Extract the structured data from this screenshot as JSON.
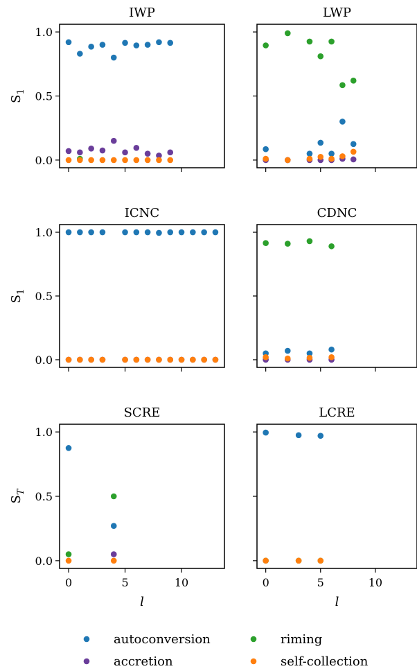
{
  "colors": {
    "autoconversion": "#1f77b4",
    "accretion": "#6a3d9a",
    "riming": "#2ca02c",
    "self-collection": "#ff7f0e"
  },
  "legend": {
    "items": [
      {
        "key": "autoconversion",
        "label": "autoconversion"
      },
      {
        "key": "riming",
        "label": "riming"
      },
      {
        "key": "accretion",
        "label": "accretion"
      },
      {
        "key": "self-collection",
        "label": "self-collection"
      }
    ]
  },
  "chart_data": [
    {
      "type": "scatter",
      "title": "IWP",
      "ylabel": "S1",
      "xlabel": "",
      "xlim": [
        -0.8,
        13.8
      ],
      "ylim": [
        -0.06,
        1.06
      ],
      "yticks": [
        "0.0",
        "0.5",
        "1.0"
      ],
      "xticks": [],
      "series": [
        {
          "name": "autoconversion",
          "x": [
            0,
            1,
            2,
            3,
            4,
            5,
            6,
            7,
            8,
            9
          ],
          "y": [
            0.92,
            0.83,
            0.885,
            0.9,
            0.8,
            0.915,
            0.895,
            0.9,
            0.92,
            0.915
          ]
        },
        {
          "name": "riming",
          "x": [
            1
          ],
          "y": [
            0.01
          ]
        },
        {
          "name": "accretion",
          "x": [
            0,
            1,
            2,
            3,
            4,
            5,
            6,
            7,
            8,
            9
          ],
          "y": [
            0.07,
            0.06,
            0.09,
            0.075,
            0.15,
            0.06,
            0.095,
            0.05,
            0.035,
            0.06
          ]
        },
        {
          "name": "self-collection",
          "x": [
            0,
            1,
            2,
            3,
            4,
            5,
            6,
            7,
            8,
            9
          ],
          "y": [
            0,
            0,
            0,
            0,
            0,
            0,
            0,
            0,
            0,
            0
          ]
        }
      ]
    },
    {
      "type": "scatter",
      "title": "LWP",
      "ylabel": "",
      "xlabel": "",
      "xlim": [
        -0.8,
        13.8
      ],
      "ylim": [
        -0.06,
        1.06
      ],
      "yticks": [],
      "xticks": [],
      "series": [
        {
          "name": "autoconversion",
          "x": [
            0,
            2,
            4,
            5,
            6,
            7,
            8
          ],
          "y": [
            0.085,
            0.0,
            0.05,
            0.135,
            0.05,
            0.3,
            0.125
          ]
        },
        {
          "name": "riming",
          "x": [
            0,
            2,
            4,
            5,
            6,
            7,
            8
          ],
          "y": [
            0.895,
            0.99,
            0.925,
            0.81,
            0.925,
            0.585,
            0.62
          ]
        },
        {
          "name": "accretion",
          "x": [
            0,
            2,
            4,
            5,
            6,
            7,
            8
          ],
          "y": [
            0.0,
            0.0,
            0.0,
            0.0,
            0.0,
            0.01,
            0.005
          ]
        },
        {
          "name": "self-collection",
          "x": [
            0,
            2,
            4,
            5,
            6,
            7,
            8
          ],
          "y": [
            0.01,
            0.0,
            0.01,
            0.025,
            0.01,
            0.03,
            0.065
          ]
        }
      ]
    },
    {
      "type": "scatter",
      "title": "ICNC",
      "ylabel": "S1",
      "xlabel": "",
      "xlim": [
        -0.8,
        13.8
      ],
      "ylim": [
        -0.06,
        1.06
      ],
      "yticks": [
        "0.0",
        "0.5",
        "1.0"
      ],
      "xticks": [],
      "series": [
        {
          "name": "autoconversion",
          "x": [
            0,
            1,
            2,
            3,
            5,
            6,
            7,
            8,
            9,
            10,
            11,
            12,
            13
          ],
          "y": [
            1.0,
            1.0,
            1.0,
            1.0,
            1.0,
            1.0,
            1.0,
            0.995,
            1.0,
            1.0,
            1.0,
            1.0,
            1.0
          ]
        },
        {
          "name": "accretion",
          "x": [
            0,
            1,
            2,
            3,
            5,
            6,
            7,
            8,
            9,
            10,
            11,
            12,
            13
          ],
          "y": [
            0,
            0,
            0,
            0,
            0,
            0,
            0,
            0,
            0,
            0,
            0,
            0,
            0
          ]
        },
        {
          "name": "self-collection",
          "x": [
            0,
            1,
            2,
            3,
            5,
            6,
            7,
            8,
            9,
            10,
            11,
            12,
            13
          ],
          "y": [
            0,
            0,
            0,
            0,
            0,
            0,
            0,
            0,
            0,
            0,
            0,
            0,
            0
          ]
        }
      ]
    },
    {
      "type": "scatter",
      "title": "CDNC",
      "ylabel": "",
      "xlabel": "",
      "xlim": [
        -0.8,
        13.8
      ],
      "ylim": [
        -0.06,
        1.06
      ],
      "yticks": [],
      "xticks": [],
      "series": [
        {
          "name": "autoconversion",
          "x": [
            0,
            2,
            4,
            6
          ],
          "y": [
            0.05,
            0.07,
            0.05,
            0.08
          ]
        },
        {
          "name": "riming",
          "x": [
            0,
            2,
            4,
            6
          ],
          "y": [
            0.915,
            0.91,
            0.93,
            0.89
          ]
        },
        {
          "name": "accretion",
          "x": [
            0,
            2,
            4,
            6
          ],
          "y": [
            0.0,
            0.0,
            0.0,
            0.0
          ]
        },
        {
          "name": "self-collection",
          "x": [
            0,
            2,
            4,
            6
          ],
          "y": [
            0.02,
            0.01,
            0.015,
            0.02
          ]
        }
      ]
    },
    {
      "type": "scatter",
      "title": "SCRE",
      "ylabel": "ST",
      "xlabel": "l",
      "xlim": [
        -0.8,
        13.8
      ],
      "ylim": [
        -0.06,
        1.06
      ],
      "yticks": [
        "0.0",
        "0.5",
        "1.0"
      ],
      "xticks": [
        "0",
        "5",
        "10"
      ],
      "series": [
        {
          "name": "autoconversion",
          "x": [
            0,
            4
          ],
          "y": [
            0.875,
            0.27
          ]
        },
        {
          "name": "riming",
          "x": [
            0,
            4
          ],
          "y": [
            0.05,
            0.5
          ]
        },
        {
          "name": "accretion",
          "x": [
            4
          ],
          "y": [
            0.05
          ]
        },
        {
          "name": "self-collection",
          "x": [
            0,
            4
          ],
          "y": [
            0.0,
            0.0
          ]
        }
      ]
    },
    {
      "type": "scatter",
      "title": "LCRE",
      "ylabel": "",
      "xlabel": "l",
      "xlim": [
        -0.8,
        13.8
      ],
      "ylim": [
        -0.06,
        1.06
      ],
      "yticks": [],
      "xticks": [
        "0",
        "5",
        "10"
      ],
      "series": [
        {
          "name": "autoconversion",
          "x": [
            0,
            3,
            5
          ],
          "y": [
            0.995,
            0.975,
            0.97
          ]
        },
        {
          "name": "riming",
          "x": [
            0,
            3,
            5
          ],
          "y": [
            0.0,
            0.0,
            0.0
          ]
        },
        {
          "name": "self-collection",
          "x": [
            0,
            3,
            5
          ],
          "y": [
            0.0,
            0.0,
            0.0
          ]
        }
      ]
    }
  ]
}
